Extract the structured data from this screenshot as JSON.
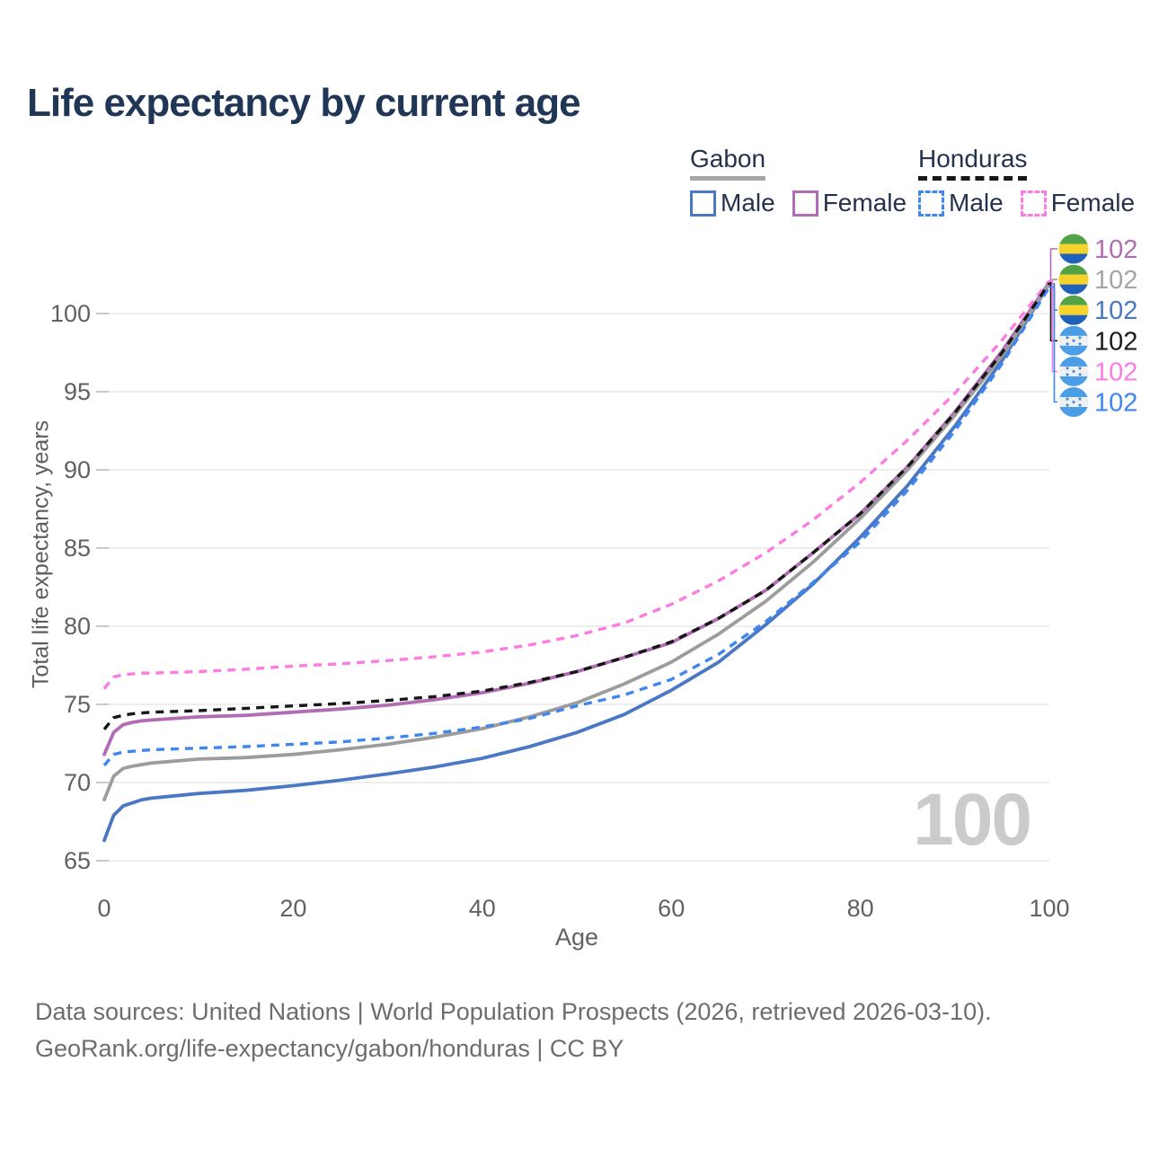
{
  "title": "Life expectancy by current age",
  "watermark": "100",
  "legend": {
    "groups": [
      {
        "label": "Gabon",
        "line_style": "solid",
        "line_color": "#a6a6a6",
        "items": [
          {
            "label": "Male",
            "color": "#4a78c4",
            "dashed": false
          },
          {
            "label": "Female",
            "color": "#b26cb4",
            "dashed": false
          }
        ]
      },
      {
        "label": "Honduras",
        "line_style": "dashed",
        "line_color": "#171717",
        "items": [
          {
            "label": "Male",
            "color": "#3f86f0",
            "dashed": true
          },
          {
            "label": "Female",
            "color": "#fb7ce3",
            "dashed": true
          }
        ]
      }
    ]
  },
  "end_labels": [
    {
      "value": "102",
      "flag": "gabon-flag",
      "series_index": 1,
      "color": "#b26cb4"
    },
    {
      "value": "102",
      "flag": "gabon-flag",
      "series_index": 2,
      "color": "#a5a5a5"
    },
    {
      "value": "102",
      "flag": "gabon-flag",
      "series_index": 0,
      "color": "#4a78c4"
    },
    {
      "value": "102",
      "flag": "honduras-flag",
      "series_index": 5,
      "color": "#1b1b1b"
    },
    {
      "value": "102",
      "flag": "honduras-flag",
      "series_index": 4,
      "color": "#fb7ce3"
    },
    {
      "value": "102",
      "flag": "honduras-flag",
      "series_index": 3,
      "color": "#3f86f0"
    }
  ],
  "flag_colors": {
    "gabon": {
      "top": "#53a346",
      "middle": "#f5d22c",
      "bottom": "#2061b9"
    },
    "honduras": {
      "band": "#4b9de6",
      "field": "#eef0f2",
      "star": "#3d86cc"
    }
  },
  "footer": {
    "line1": "Data sources: United Nations | World Population Prospects (2026, retrieved 2026-03-10).",
    "line2": "GeoRank.org/life-expectancy/gabon/honduras | CC BY"
  },
  "chart_data": {
    "type": "line",
    "title": "Life expectancy by current age",
    "xlabel": "Age",
    "ylabel": "Total life expectancy, years",
    "xlim": [
      0,
      100
    ],
    "ylim": [
      65,
      100
    ],
    "x_ticks": [
      0,
      20,
      40,
      60,
      80,
      100
    ],
    "y_ticks": [
      65,
      70,
      75,
      80,
      85,
      90,
      95,
      100
    ],
    "grid": "horizontal",
    "legend_position": "top-right",
    "x": [
      0,
      1,
      2,
      3,
      4,
      5,
      10,
      15,
      20,
      25,
      30,
      35,
      40,
      45,
      50,
      55,
      60,
      65,
      70,
      75,
      80,
      85,
      90,
      95,
      100
    ],
    "series": [
      {
        "name": "Gabon Male",
        "country": "Gabon",
        "sex": "Male",
        "color": "#4a78c4",
        "dash": "solid",
        "values": [
          66.3,
          67.9,
          68.5,
          68.7,
          68.9,
          69.0,
          69.3,
          69.5,
          69.8,
          70.15,
          70.55,
          71.0,
          71.55,
          72.3,
          73.2,
          74.35,
          75.9,
          77.7,
          80.1,
          82.7,
          85.7,
          89.0,
          92.8,
          97.0,
          101.9
        ]
      },
      {
        "name": "Gabon Female",
        "country": "Gabon",
        "sex": "Female",
        "color": "#b26cb4",
        "dash": "solid",
        "values": [
          71.8,
          73.2,
          73.7,
          73.85,
          73.95,
          74.0,
          74.2,
          74.3,
          74.5,
          74.7,
          74.95,
          75.3,
          75.75,
          76.35,
          77.1,
          78.0,
          78.95,
          80.5,
          82.3,
          84.7,
          87.2,
          90.2,
          93.7,
          97.6,
          102.0
        ]
      },
      {
        "name": "Gabon (both sexes)",
        "country": "Gabon",
        "sex": "All",
        "color": "#9c9c9c",
        "dash": "solid",
        "values": [
          68.9,
          70.4,
          70.9,
          71.05,
          71.15,
          71.25,
          71.5,
          71.6,
          71.8,
          72.1,
          72.45,
          72.9,
          73.45,
          74.2,
          75.1,
          76.3,
          77.7,
          79.5,
          81.6,
          84.1,
          86.9,
          90.0,
          93.5,
          97.3,
          101.9
        ]
      },
      {
        "name": "Honduras Male",
        "country": "Honduras",
        "sex": "Male",
        "color": "#3f86f0",
        "dash": "dashed",
        "values": [
          71.1,
          71.8,
          71.95,
          72.0,
          72.05,
          72.1,
          72.2,
          72.3,
          72.45,
          72.6,
          72.85,
          73.15,
          73.55,
          74.1,
          74.9,
          75.6,
          76.6,
          78.2,
          80.3,
          82.8,
          85.4,
          88.7,
          92.5,
          96.8,
          101.7
        ]
      },
      {
        "name": "Honduras Female",
        "country": "Honduras",
        "sex": "Female",
        "color": "#fb7ce3",
        "dash": "dashed",
        "values": [
          76.0,
          76.75,
          76.9,
          76.95,
          77.0,
          77.0,
          77.1,
          77.25,
          77.45,
          77.6,
          77.8,
          78.05,
          78.35,
          78.8,
          79.4,
          80.2,
          81.4,
          82.9,
          84.7,
          86.8,
          89.2,
          91.9,
          94.9,
          98.3,
          102.1
        ]
      },
      {
        "name": "Honduras (both sexes)",
        "country": "Honduras",
        "sex": "All",
        "color": "#171717",
        "dash": "dashed",
        "values": [
          73.4,
          74.15,
          74.3,
          74.4,
          74.45,
          74.5,
          74.6,
          74.75,
          74.9,
          75.05,
          75.25,
          75.5,
          75.85,
          76.4,
          77.1,
          78.0,
          79.0,
          80.5,
          82.3,
          84.7,
          87.2,
          90.2,
          93.65,
          97.5,
          101.95
        ]
      }
    ],
    "end_value_label": "102"
  }
}
